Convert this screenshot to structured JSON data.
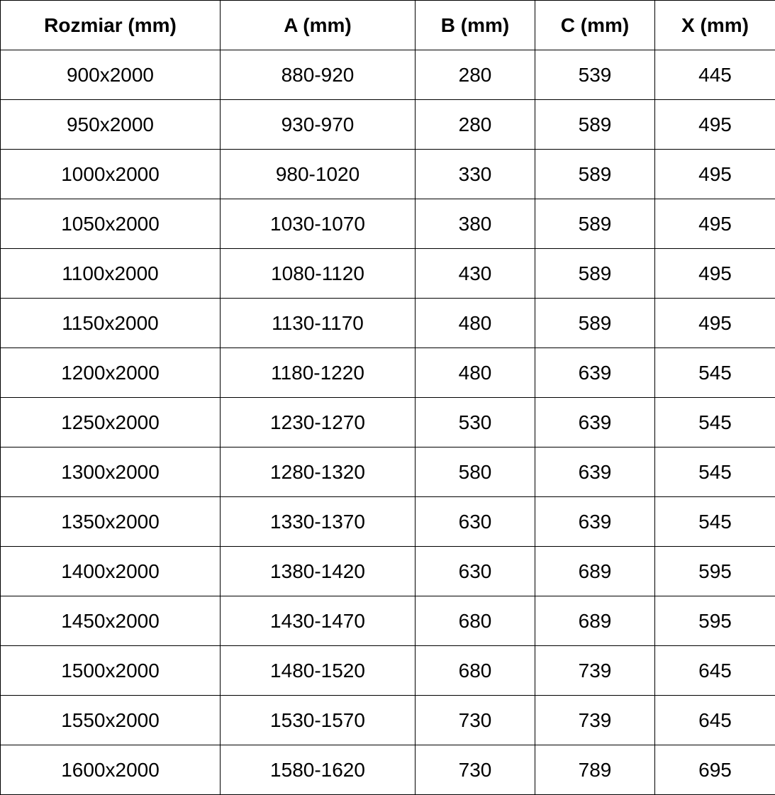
{
  "table": {
    "headers": [
      "Rozmiar (mm)",
      "A (mm)",
      "B (mm)",
      "C (mm)",
      "X (mm)"
    ],
    "rows": [
      [
        "900x2000",
        "880-920",
        "280",
        "539",
        "445"
      ],
      [
        "950x2000",
        "930-970",
        "280",
        "589",
        "495"
      ],
      [
        "1000x2000",
        "980-1020",
        "330",
        "589",
        "495"
      ],
      [
        "1050x2000",
        "1030-1070",
        "380",
        "589",
        "495"
      ],
      [
        "1100x2000",
        "1080-1120",
        "430",
        "589",
        "495"
      ],
      [
        "1150x2000",
        "1130-1170",
        "480",
        "589",
        "495"
      ],
      [
        "1200x2000",
        "1180-1220",
        "480",
        "639",
        "545"
      ],
      [
        "1250x2000",
        "1230-1270",
        "530",
        "639",
        "545"
      ],
      [
        "1300x2000",
        "1280-1320",
        "580",
        "639",
        "545"
      ],
      [
        "1350x2000",
        "1330-1370",
        "630",
        "639",
        "545"
      ],
      [
        "1400x2000",
        "1380-1420",
        "630",
        "689",
        "595"
      ],
      [
        "1450x2000",
        "1430-1470",
        "680",
        "689",
        "595"
      ],
      [
        "1500x2000",
        "1480-1520",
        "680",
        "739",
        "645"
      ],
      [
        "1550x2000",
        "1530-1570",
        "730",
        "739",
        "645"
      ],
      [
        "1600x2000",
        "1580-1620",
        "730",
        "789",
        "695"
      ]
    ]
  }
}
